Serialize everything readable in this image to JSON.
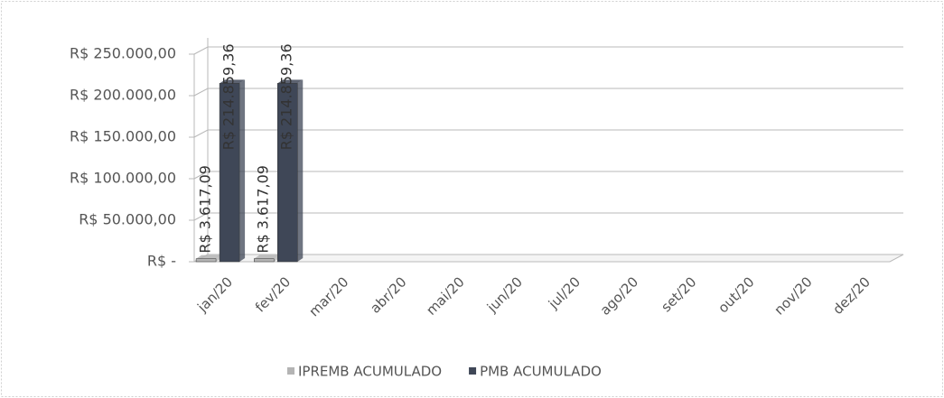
{
  "chart_data": {
    "type": "bar3d",
    "categories": [
      "jan/20",
      "fev/20",
      "mar/20",
      "abr/20",
      "mai/20",
      "jun/20",
      "jul/20",
      "ago/20",
      "set/20",
      "out/20",
      "nov/20",
      "dez/20"
    ],
    "series": [
      {
        "name": "IPREMB ACUMULADO",
        "color": "#b4b4b4",
        "values": [
          3617.09,
          3617.09,
          null,
          null,
          null,
          null,
          null,
          null,
          null,
          null,
          null,
          null
        ],
        "value_labels": [
          "R$ 3.617,09",
          "R$ 3.617,09",
          null,
          null,
          null,
          null,
          null,
          null,
          null,
          null,
          null,
          null
        ]
      },
      {
        "name": "PMB ACUMULADO",
        "color": "#3f4757",
        "values": [
          214859.36,
          214859.36,
          null,
          null,
          null,
          null,
          null,
          null,
          null,
          null,
          null,
          null
        ],
        "value_labels": [
          "R$ 214.859,36",
          "R$ 214.859,36",
          null,
          null,
          null,
          null,
          null,
          null,
          null,
          null,
          null,
          null
        ]
      }
    ],
    "ylim": [
      0,
      250000
    ],
    "yticks": [
      {
        "value": 0,
        "label": "R$ -"
      },
      {
        "value": 50000,
        "label": "R$ 50.000,00"
      },
      {
        "value": 100000,
        "label": "R$ 100.000,00"
      },
      {
        "value": 150000,
        "label": "R$ 150.000,00"
      },
      {
        "value": 200000,
        "label": "R$ 200.000,00"
      },
      {
        "value": 250000,
        "label": "R$ 250.000,00"
      }
    ],
    "grid": true,
    "legend": "bottom"
  }
}
